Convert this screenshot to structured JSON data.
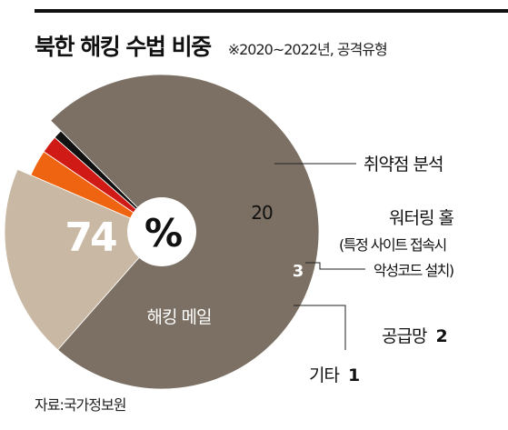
{
  "title": "북한 해킹 수법 비중",
  "subtitle": "※2020~2022년, 공격유형",
  "center_label": "%",
  "source": "자료:국가정보원",
  "colors": {
    "hacking_mail": "#7b7063",
    "vulnerability": "#c9b8a3",
    "watering_hole": "#ef6410",
    "malware": "#d01a16",
    "supply_chain": "#111111",
    "other": "#8c2f22"
  },
  "chart_data": {
    "type": "pie",
    "unit": "%",
    "slices": [
      {
        "label": "해킹 메일",
        "value": 74,
        "value_label": "74",
        "color_key": "hacking_mail"
      },
      {
        "label": "취약점 분석",
        "value": 20,
        "value_label": "20",
        "color_key": "vulnerability"
      },
      {
        "label": "워터링 홀 (특정 사이트 접속시 악성코드 설치)",
        "value": 3,
        "value_label": "3",
        "color_key": "watering_hole"
      },
      {
        "label": "공급망",
        "value": 2,
        "value_label": "2",
        "color_key": "malware"
      },
      {
        "label": "기타",
        "value": 1,
        "value_label": "1",
        "color_key": "supply_chain"
      }
    ],
    "callouts": {
      "vulnerability": "취약점 분석",
      "watering_line1": "워터링 홀",
      "watering_line2": "(특정 사이트 접속시",
      "watering_line3": "악성코드 설치)",
      "supply_chain": "공급망",
      "supply_chain_value": "2",
      "other": "기타",
      "other_value": "1"
    }
  }
}
